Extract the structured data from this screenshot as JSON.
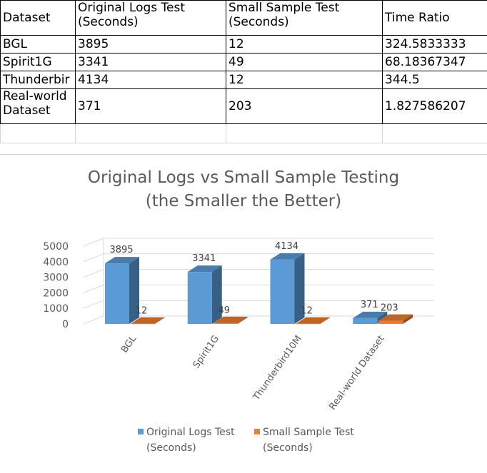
{
  "table": {
    "headers": [
      "Dataset",
      "Original Logs Test (Seconds)",
      "Small Sample Test (Seconds)",
      "Time Ratio"
    ],
    "rows": [
      [
        "BGL",
        "3895",
        "12",
        "324.5833333"
      ],
      [
        "Spirit1G",
        "3341",
        "49",
        "68.18367347"
      ],
      [
        "Thunderbir",
        "4134",
        "12",
        "344.5"
      ],
      [
        "Real-world Dataset",
        "371",
        "203",
        "1.827586207"
      ]
    ]
  },
  "chart_data": {
    "type": "bar",
    "title_line1": "Original Logs vs Small Sample Testing",
    "title_line2": "(the Smaller the Better)",
    "categories": [
      "BGL",
      "Spirit1G",
      "Thunderbird10M",
      "Real-world Dataset"
    ],
    "series": [
      {
        "name": "Original Logs Test (Seconds)",
        "name_line1": "Original Logs Test",
        "name_line2": "(Seconds)",
        "color": "#5b9bd5",
        "values": [
          3895,
          3341,
          4134,
          371
        ]
      },
      {
        "name": "Small Sample Test (Seconds)",
        "name_line1": "Small Sample Test",
        "name_line2": "(Seconds)",
        "color": "#ed7d31",
        "values": [
          12,
          49,
          12,
          203
        ]
      }
    ],
    "yticks": [
      "0",
      "1000",
      "2000",
      "3000",
      "4000",
      "5000"
    ],
    "ylim": [
      0,
      5000
    ],
    "grid": true,
    "legend": "bottom",
    "style": "3d-clustered-column"
  }
}
